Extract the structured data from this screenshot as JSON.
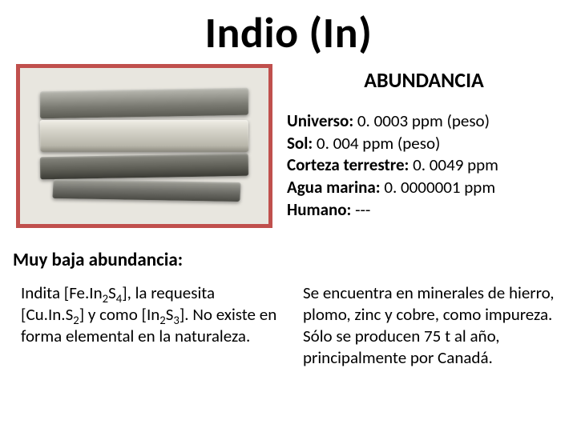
{
  "title": "Indio (In)",
  "abundance": {
    "heading": "ABUNDANCIA",
    "items": [
      {
        "label": "Universo:",
        "value": " 0. 0003 ppm (peso)"
      },
      {
        "label": "Sol:",
        "value": " 0. 004 ppm (peso)"
      },
      {
        "label": "Corteza terrestre:",
        "value": " 0. 0049 ppm"
      },
      {
        "label": "Agua marina:",
        "value": " 0. 0000001 ppm"
      },
      {
        "label": "Humano:",
        "value": " ---"
      }
    ]
  },
  "lower_heading": "Muy baja abundancia:",
  "left_para_html": "Indita [Fe.In<sub>2</sub>S<sub>4</sub>], la requesita [Cu.In.S<sub>2</sub>] y como [In<sub>2</sub>S<sub>3</sub>]. No existe en forma elemental en la naturaleza.",
  "right_para_html": "Se encuentra en minerales de hierro, plomo, zinc y cobre, como impureza.<br>Sólo se producen 75 t al año, principalmente por Canadá.",
  "image": {
    "border_color": "#c0504d",
    "background": "#e8e6df",
    "alt": "indium-metal-bars"
  },
  "colors": {
    "text": "#000000",
    "background": "#ffffff"
  },
  "font": {
    "family": "Calibri",
    "title_size_pt": 40,
    "heading_size_pt": 20,
    "body_size_pt": 16
  }
}
